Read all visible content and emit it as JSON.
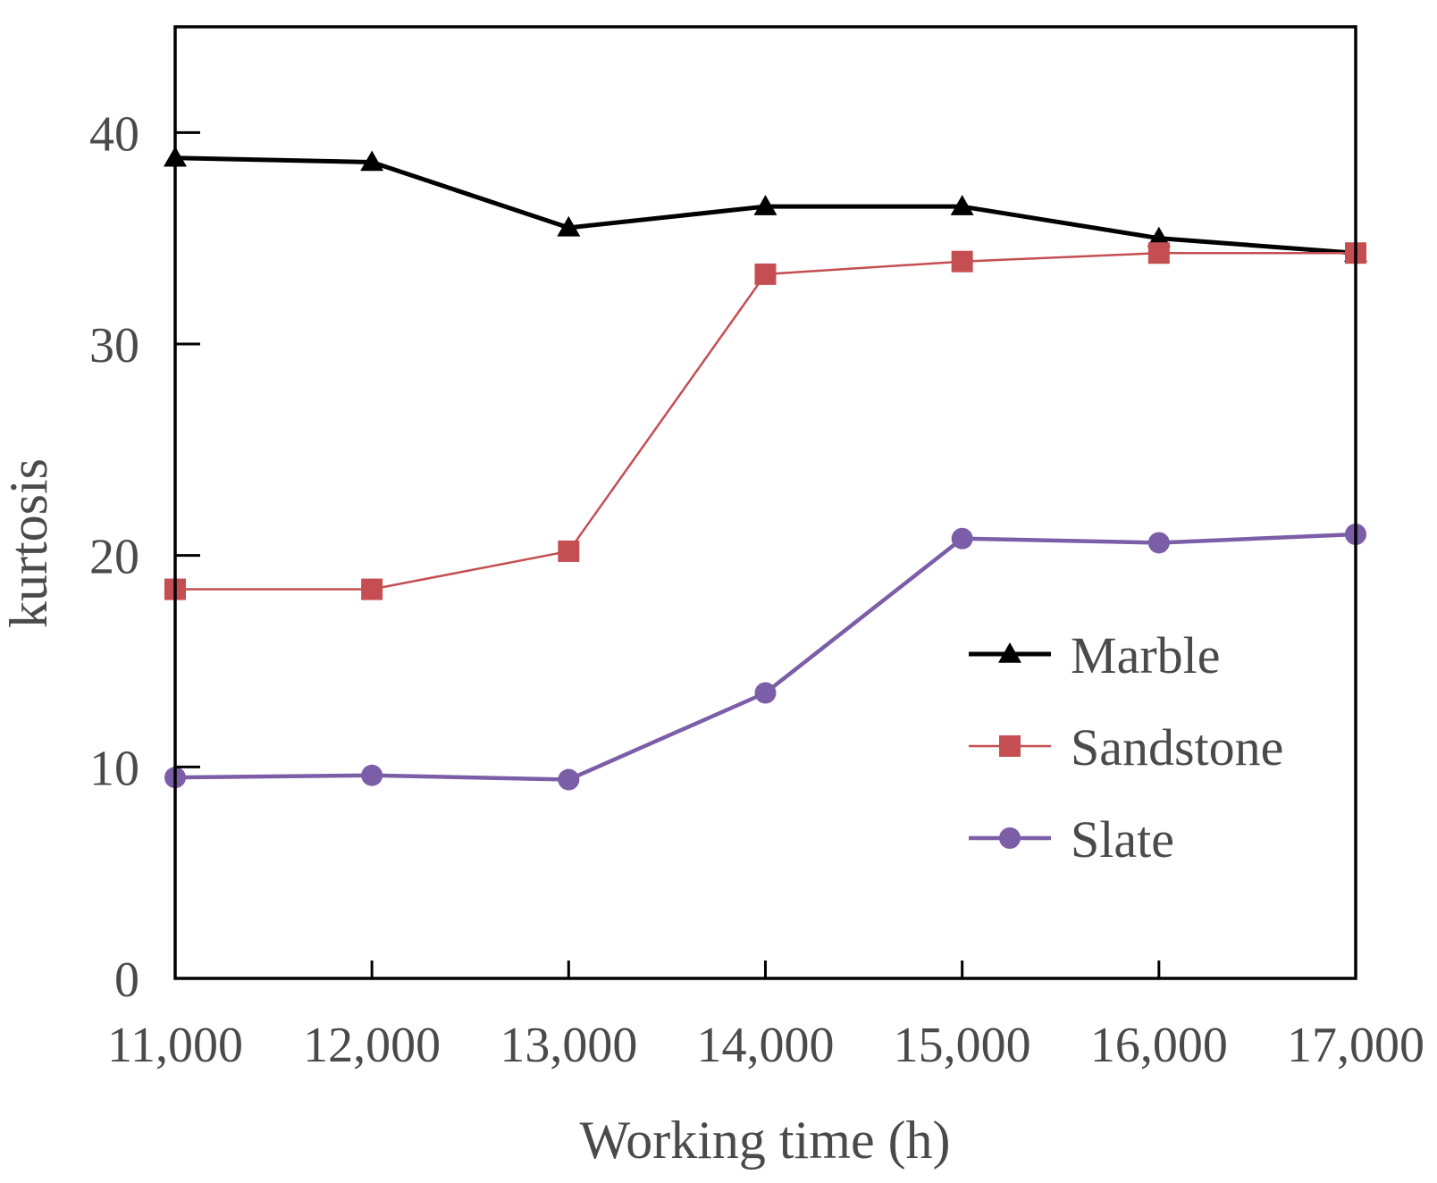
{
  "chart_data": {
    "type": "line",
    "title": "",
    "xlabel": "Working time (h)",
    "ylabel": "kurtosis",
    "x": [
      11000,
      12000,
      13000,
      14000,
      15000,
      16000,
      17000
    ],
    "x_tick_labels": [
      "11,000",
      "12,000",
      "13,000",
      "14,000",
      "15,000",
      "16,000",
      "17,000"
    ],
    "xlim": [
      11000,
      17000
    ],
    "ylim": [
      0,
      45
    ],
    "y_ticks": [
      0,
      10,
      20,
      30,
      40
    ],
    "y_tick_labels": [
      "0",
      "10",
      "20",
      "30",
      "40"
    ],
    "grid": false,
    "legend_position": "right",
    "series": [
      {
        "name": "Marble",
        "marker": "triangle",
        "color": "#000000",
        "values": [
          38.8,
          38.6,
          35.5,
          36.5,
          36.5,
          35.0,
          34.3
        ]
      },
      {
        "name": "Sandstone",
        "marker": "square",
        "color": "#c44e52",
        "values": [
          18.4,
          18.4,
          20.2,
          33.3,
          33.9,
          34.3,
          34.3
        ]
      },
      {
        "name": "Slate",
        "marker": "circle",
        "color": "#7b5ea7",
        "values": [
          9.5,
          9.6,
          9.4,
          13.5,
          20.8,
          20.6,
          21.0
        ]
      }
    ]
  }
}
